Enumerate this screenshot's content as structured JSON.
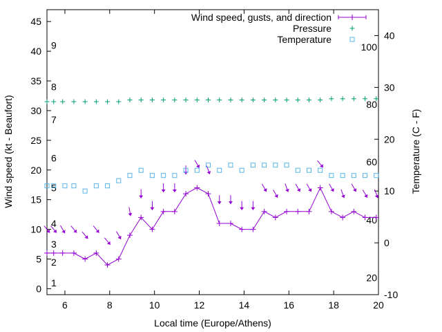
{
  "chart_data": {
    "type": "line",
    "xlabel": "Local time (Europe/Athens)",
    "ylabel": "Wind speed (kt - Beaufort)",
    "y2label": "Temperature (C - F)",
    "xlim": [
      5.2,
      20
    ],
    "ylim": [
      -1,
      47
    ],
    "y2lim": [
      -10,
      45
    ],
    "x_ticks": [
      6,
      8,
      10,
      12,
      14,
      16,
      18,
      20
    ],
    "y_ticks": [
      0,
      5,
      10,
      15,
      20,
      25,
      30,
      35,
      40,
      45
    ],
    "y2_ticks": [
      -10,
      0,
      10,
      20,
      30,
      40
    ],
    "beaufort_labels": [
      {
        "text": "1",
        "y": 1
      },
      {
        "text": "2",
        "y": 4.5
      },
      {
        "text": "3",
        "y": 7.5
      },
      {
        "text": "4",
        "y": 11
      },
      {
        "text": "5",
        "y": 17
      },
      {
        "text": "6",
        "y": 22
      },
      {
        "text": "7",
        "y": 28.5
      },
      {
        "text": "8",
        "y": 34
      },
      {
        "text": "9",
        "y": 41
      }
    ],
    "fahrenheit_labels": [
      {
        "text": "20",
        "y2": -6.7
      },
      {
        "text": "40",
        "y2": 4.4
      },
      {
        "text": "60",
        "y2": 15.6
      },
      {
        "text": "80",
        "y2": 26.7
      },
      {
        "text": "100",
        "y2": 37.8
      }
    ],
    "legend_position": "top-right",
    "grid": false,
    "series": [
      {
        "name": "Wind speed, gusts, and direction",
        "color": "#9400d3",
        "marker": "plus-line",
        "x": [
          5.2,
          5.5,
          5.9,
          6.4,
          6.9,
          7.4,
          7.9,
          8.4,
          8.9,
          9.4,
          9.9,
          10.4,
          10.9,
          11.4,
          11.9,
          12.4,
          12.9,
          13.4,
          13.9,
          14.4,
          14.9,
          15.4,
          15.9,
          16.4,
          16.9,
          17.4,
          17.9,
          18.4,
          18.9,
          19.4,
          19.9
        ],
        "values": [
          6,
          6,
          6,
          6,
          5,
          6,
          4,
          5,
          9,
          12,
          10,
          13,
          13,
          16,
          17,
          16,
          11,
          11,
          10,
          10,
          13,
          12,
          13,
          13,
          13,
          17,
          13,
          12,
          13,
          12,
          12
        ]
      },
      {
        "name": "Pressure",
        "color": "#009e73",
        "marker": "plus",
        "x": [
          5.2,
          5.5,
          5.9,
          6.4,
          6.9,
          7.4,
          7.9,
          8.4,
          8.9,
          9.4,
          9.9,
          10.4,
          10.9,
          11.4,
          11.9,
          12.4,
          12.9,
          13.4,
          13.9,
          14.4,
          14.9,
          15.4,
          15.9,
          16.4,
          16.9,
          17.4,
          17.9,
          18.4,
          18.9,
          19.4,
          19.9
        ],
        "values": [
          31.5,
          31.5,
          31.5,
          31.5,
          31.5,
          31.5,
          31.5,
          31.5,
          31.8,
          31.8,
          31.8,
          31.8,
          31.8,
          31.8,
          31.8,
          31.8,
          31.8,
          31.8,
          31.8,
          31.8,
          31.8,
          31.8,
          31.8,
          31.8,
          31.8,
          31.8,
          32,
          32,
          32,
          32,
          32
        ]
      },
      {
        "name": "Temperature",
        "color": "#56b4e9",
        "marker": "open-square",
        "axis": "y2",
        "x": [
          5.2,
          5.5,
          6.0,
          6.4,
          6.9,
          7.4,
          7.9,
          8.4,
          8.9,
          9.4,
          9.9,
          10.4,
          10.9,
          11.4,
          11.9,
          12.4,
          12.9,
          13.4,
          13.9,
          14.4,
          14.9,
          15.4,
          15.9,
          16.4,
          16.9,
          17.4,
          17.9,
          18.4,
          18.9,
          19.4,
          19.9
        ],
        "values": [
          11,
          11,
          11,
          11,
          10,
          11,
          11,
          12,
          13,
          14,
          13,
          13,
          13,
          14,
          14,
          15,
          14,
          15,
          14,
          15,
          15,
          15,
          15,
          14,
          14,
          14,
          13,
          13,
          13,
          13,
          13
        ]
      }
    ],
    "gusts": {
      "x": [
        5.2,
        5.5,
        5.9,
        6.4,
        6.9,
        7.4,
        7.9,
        8.4,
        8.9,
        9.4,
        9.9,
        10.4,
        10.9,
        11.4,
        11.9,
        12.4,
        12.9,
        13.4,
        13.9,
        14.4,
        14.9,
        15.4,
        15.9,
        16.4,
        16.9,
        17.4,
        17.9,
        18.4,
        18.9,
        19.4,
        19.9
      ],
      "values": [
        10,
        10,
        10,
        10,
        9,
        10,
        8,
        9,
        13,
        16,
        14,
        17,
        17,
        20,
        21,
        20,
        15,
        15,
        14,
        14,
        17,
        16,
        17,
        17,
        17,
        21,
        17,
        16,
        17,
        16,
        16
      ],
      "direction_deg": [
        320,
        320,
        330,
        320,
        320,
        320,
        320,
        330,
        350,
        360,
        360,
        360,
        360,
        360,
        330,
        340,
        360,
        360,
        360,
        360,
        330,
        330,
        340,
        330,
        330,
        320,
        330,
        340,
        330,
        330,
        340
      ]
    }
  }
}
